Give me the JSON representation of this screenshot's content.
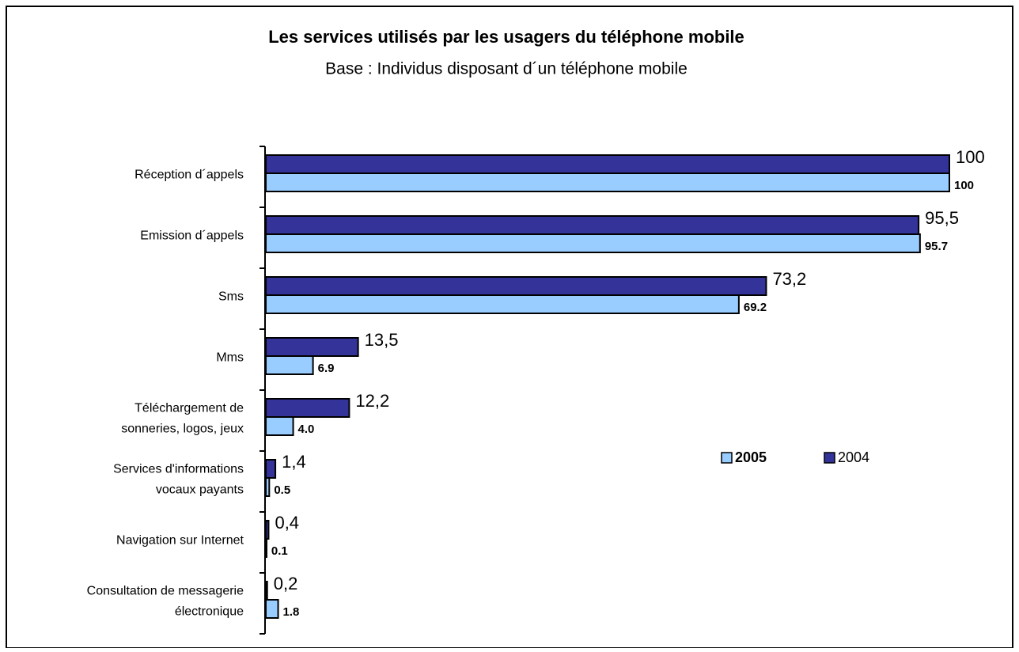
{
  "chart_data": {
    "type": "hbar",
    "title": "Les services utilisés par les usagers du téléphone mobile",
    "subtitle": "Base : Individus disposant d´un téléphone mobile",
    "categories": [
      [
        "Réception d´appels"
      ],
      [
        "Emission d´appels"
      ],
      [
        "Sms"
      ],
      [
        "Mms"
      ],
      [
        "Téléchargement de",
        "sonneries, logos, jeux"
      ],
      [
        "Services d'informations",
        "vocaux payants"
      ],
      [
        "Navigation sur Internet"
      ],
      [
        "Consultation de messagerie",
        "électronique"
      ]
    ],
    "series": [
      {
        "name": "2005",
        "color": "#99ccff",
        "values": [
          100,
          95.7,
          69.2,
          6.9,
          4.0,
          0.5,
          0.1,
          1.8
        ],
        "value_labels": [
          "100",
          "95.7",
          "69.2",
          "6.9",
          "4.0",
          "0.5",
          "0.1",
          "1.8"
        ]
      },
      {
        "name": "2004",
        "color": "#333399",
        "values": [
          100,
          95.5,
          73.2,
          13.5,
          12.2,
          1.4,
          0.4,
          0.2
        ],
        "value_labels": [
          "100",
          "95,5",
          "73,2",
          "13,5",
          "12,2",
          "1,4",
          "0,4",
          "0,2"
        ]
      }
    ],
    "xlim": [
      0,
      100
    ]
  }
}
